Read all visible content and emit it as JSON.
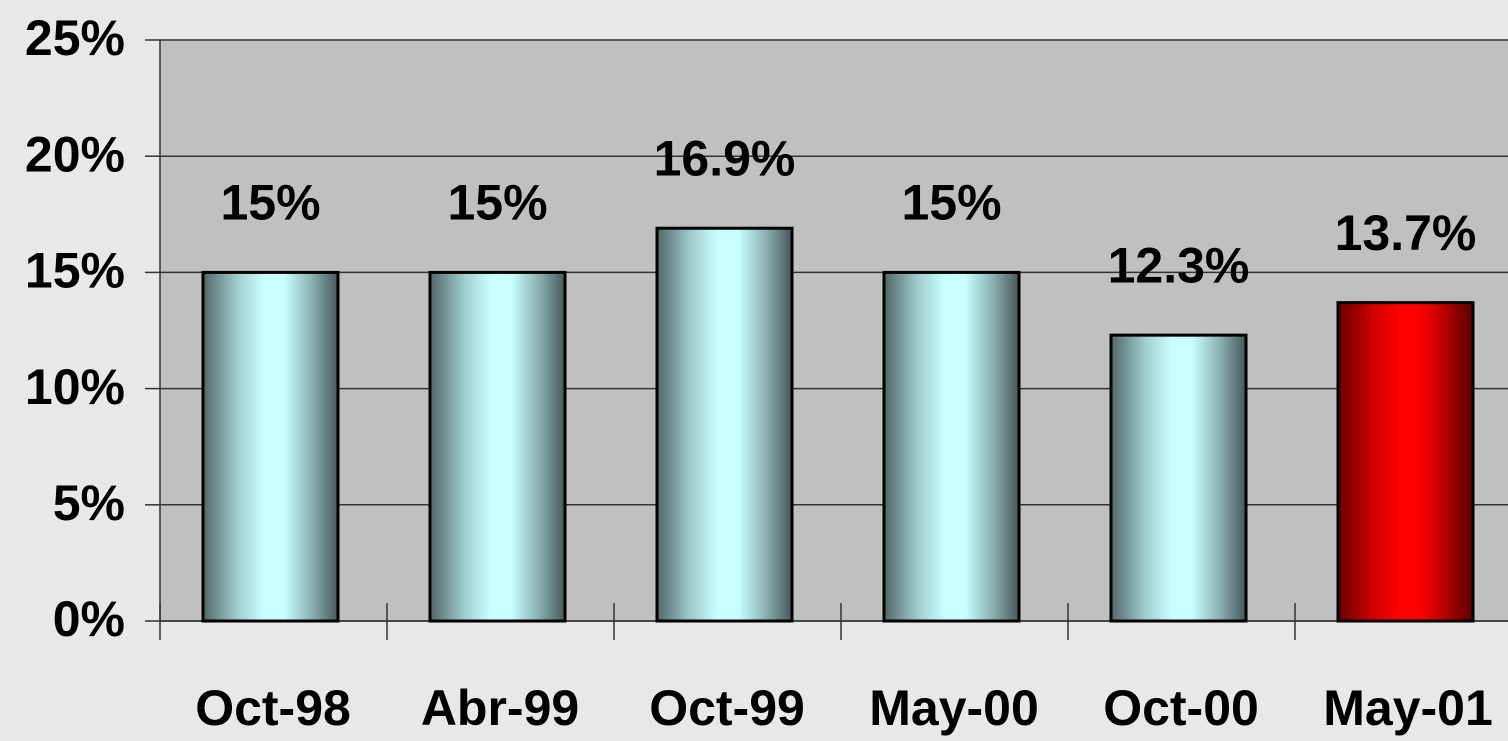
{
  "chart_data": {
    "type": "bar",
    "categories": [
      "Oct-98",
      "Abr-99",
      "Oct-99",
      "May-00",
      "Oct-00",
      "May-01"
    ],
    "values": [
      15,
      15,
      16.9,
      15,
      12.3,
      13.7
    ],
    "value_labels": [
      "15%",
      "15%",
      "16.9%",
      "15%",
      "12.3%",
      "13.7%"
    ],
    "colors": [
      "#c8ffff",
      "#c8ffff",
      "#c8ffff",
      "#c8ffff",
      "#c8ffff",
      "#ff0000"
    ],
    "ylim": [
      0,
      25
    ],
    "yticks": [
      {
        "value": 0,
        "label": "0%"
      },
      {
        "value": 5,
        "label": "5%"
      },
      {
        "value": 10,
        "label": "10%"
      },
      {
        "value": 15,
        "label": "15%"
      },
      {
        "value": 20,
        "label": "20%"
      },
      {
        "value": 25,
        "label": "25%"
      }
    ],
    "grid": true
  }
}
